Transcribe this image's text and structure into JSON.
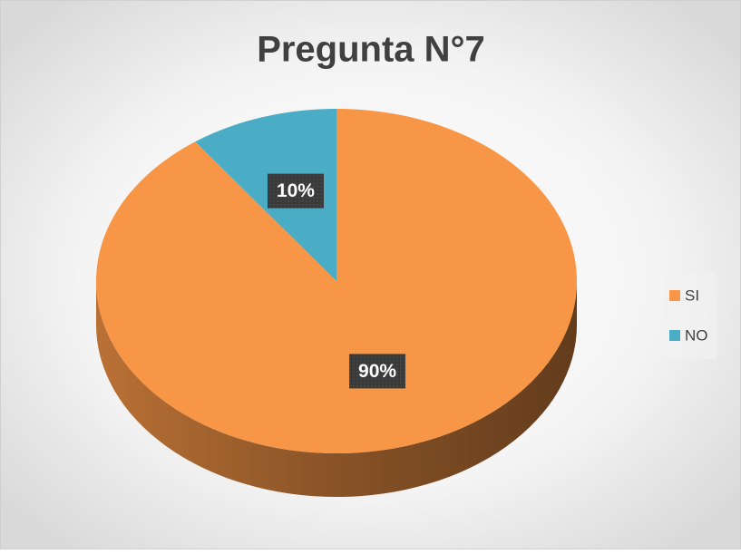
{
  "chart_data": {
    "type": "pie",
    "title": "Pregunta N°7",
    "categories": [
      "SI",
      "NO"
    ],
    "values": [
      90,
      10
    ],
    "value_labels": [
      "90%",
      "10%"
    ],
    "colors": [
      "#f79646",
      "#4bacc6"
    ],
    "legend": "right"
  }
}
